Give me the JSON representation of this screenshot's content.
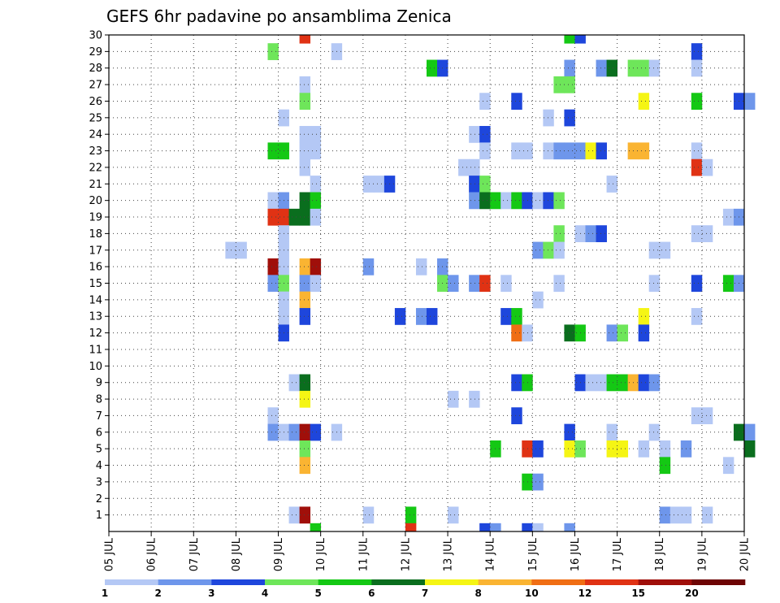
{
  "chart_data": {
    "type": "heatmap",
    "title": "GEFS 6hr padavine po ansamblima Zenica",
    "xlabel": "",
    "ylabel": "",
    "x_tick_labels": [
      "05 JUL",
      "06 JUL",
      "07 JUL",
      "08 JUL",
      "09 JUL",
      "10 JUL",
      "11 JUL",
      "12 JUL",
      "13 JUL",
      "14 JUL",
      "15 JUL",
      "16 JUL",
      "17 JUL",
      "18 JUL",
      "19 JUL",
      "20 JUL"
    ],
    "y_tick_labels": [
      "1",
      "2",
      "3",
      "4",
      "5",
      "6",
      "7",
      "8",
      "9",
      "10",
      "11",
      "12",
      "13",
      "14",
      "15",
      "16",
      "17",
      "18",
      "19",
      "20",
      "21",
      "22",
      "23",
      "24",
      "25",
      "26",
      "27",
      "28",
      "29",
      "30"
    ],
    "x_range_days": [
      0,
      15
    ],
    "y_range": [
      0,
      30
    ],
    "grid": true,
    "legend_position": "bottom",
    "legend_levels": [
      {
        "color": "#b4c8f5",
        "label": "1"
      },
      {
        "color": "#6e96eb",
        "label": "2"
      },
      {
        "color": "#1e46dc",
        "label": "3"
      },
      {
        "color": "#6ee65a",
        "label": "4"
      },
      {
        "color": "#14c814",
        "label": "5"
      },
      {
        "color": "#0a6e1e",
        "label": "6"
      },
      {
        "color": "#f5f514",
        "label": "7"
      },
      {
        "color": "#fab432",
        "label": "8"
      },
      {
        "color": "#f06e14",
        "label": "10"
      },
      {
        "color": "#e03214",
        "label": "12"
      },
      {
        "color": "#a00f0a",
        "label": "15"
      },
      {
        "color": "#6e0505",
        "label": "20"
      }
    ],
    "level_boundaries": [
      "1",
      "2",
      "3",
      "4",
      "5",
      "6",
      "7",
      "8",
      "10",
      "12",
      "15",
      "20"
    ],
    "cells": [
      [
        4.5,
        30,
        9
      ],
      [
        10.75,
        30,
        4
      ],
      [
        11,
        30,
        2
      ],
      [
        3.75,
        29,
        3
      ],
      [
        5.25,
        29,
        0
      ],
      [
        13.75,
        29,
        2
      ],
      [
        7.5,
        28,
        4
      ],
      [
        7.75,
        28,
        2
      ],
      [
        10.75,
        28,
        1
      ],
      [
        11.5,
        28,
        1
      ],
      [
        11.75,
        28,
        5
      ],
      [
        12.25,
        28,
        3
      ],
      [
        12.5,
        28,
        3
      ],
      [
        12.75,
        28,
        0
      ],
      [
        13.75,
        28,
        0
      ],
      [
        4.5,
        27,
        0
      ],
      [
        10.5,
        27,
        3
      ],
      [
        10.75,
        27,
        3
      ],
      [
        4.5,
        26,
        3
      ],
      [
        8.75,
        26,
        0
      ],
      [
        9.5,
        26,
        2
      ],
      [
        12.5,
        26,
        6
      ],
      [
        13.75,
        26,
        4
      ],
      [
        14.75,
        26,
        2
      ],
      [
        15,
        26,
        1
      ],
      [
        4,
        25,
        0
      ],
      [
        10.25,
        25,
        0
      ],
      [
        10.75,
        25,
        2
      ],
      [
        4.5,
        24,
        0
      ],
      [
        4.75,
        24,
        0
      ],
      [
        8.5,
        24,
        0
      ],
      [
        8.75,
        24,
        2
      ],
      [
        3.75,
        23,
        4
      ],
      [
        4,
        23,
        4
      ],
      [
        4.5,
        23,
        0
      ],
      [
        4.75,
        23,
        0
      ],
      [
        8.75,
        23,
        0
      ],
      [
        9.5,
        23,
        0
      ],
      [
        9.75,
        23,
        0
      ],
      [
        10.25,
        23,
        0
      ],
      [
        10.5,
        23,
        1
      ],
      [
        10.75,
        23,
        1
      ],
      [
        11,
        23,
        1
      ],
      [
        11.25,
        23,
        6
      ],
      [
        11.5,
        23,
        2
      ],
      [
        12.25,
        23,
        7
      ],
      [
        12.5,
        23,
        7
      ],
      [
        13.75,
        23,
        0
      ],
      [
        4.5,
        22,
        0
      ],
      [
        8.25,
        22,
        0
      ],
      [
        8.5,
        22,
        0
      ],
      [
        13.75,
        22,
        9
      ],
      [
        14,
        22,
        0
      ],
      [
        4.75,
        21,
        0
      ],
      [
        6,
        21,
        0
      ],
      [
        6.25,
        21,
        0
      ],
      [
        6.5,
        21,
        2
      ],
      [
        8.5,
        21,
        2
      ],
      [
        8.75,
        21,
        3
      ],
      [
        11.75,
        21,
        0
      ],
      [
        3.75,
        20,
        0
      ],
      [
        4,
        20,
        1
      ],
      [
        4.5,
        20,
        5
      ],
      [
        4.75,
        20,
        4
      ],
      [
        8.5,
        20,
        1
      ],
      [
        8.75,
        20,
        5
      ],
      [
        9,
        20,
        4
      ],
      [
        9.25,
        20,
        0
      ],
      [
        9.5,
        20,
        4
      ],
      [
        9.75,
        20,
        2
      ],
      [
        10,
        20,
        0
      ],
      [
        10.25,
        20,
        2
      ],
      [
        10.5,
        20,
        3
      ],
      [
        3.75,
        19,
        9
      ],
      [
        4,
        19,
        9
      ],
      [
        4.25,
        19,
        5
      ],
      [
        4.5,
        19,
        5
      ],
      [
        4.75,
        19,
        0
      ],
      [
        14.5,
        19,
        0
      ],
      [
        14.75,
        19,
        1
      ],
      [
        4,
        18,
        0
      ],
      [
        10.5,
        18,
        3
      ],
      [
        11,
        18,
        0
      ],
      [
        11.25,
        18,
        1
      ],
      [
        11.5,
        18,
        2
      ],
      [
        13.75,
        18,
        0
      ],
      [
        14,
        18,
        0
      ],
      [
        2.75,
        17,
        0
      ],
      [
        3,
        17,
        0
      ],
      [
        4,
        17,
        0
      ],
      [
        10,
        17,
        1
      ],
      [
        10.25,
        17,
        3
      ],
      [
        10.5,
        17,
        0
      ],
      [
        12.75,
        17,
        0
      ],
      [
        13,
        17,
        0
      ],
      [
        3.75,
        16,
        10
      ],
      [
        4,
        16,
        0
      ],
      [
        4.5,
        16,
        7
      ],
      [
        4.75,
        16,
        10
      ],
      [
        6,
        16,
        1
      ],
      [
        7.25,
        16,
        0
      ],
      [
        7.75,
        16,
        1
      ],
      [
        3.75,
        15,
        1
      ],
      [
        4,
        15,
        3
      ],
      [
        4.5,
        15,
        1
      ],
      [
        4.75,
        15,
        0
      ],
      [
        7.75,
        15,
        3
      ],
      [
        8,
        15,
        1
      ],
      [
        8.5,
        15,
        1
      ],
      [
        8.75,
        15,
        9
      ],
      [
        9.25,
        15,
        0
      ],
      [
        10.5,
        15,
        0
      ],
      [
        12.75,
        15,
        0
      ],
      [
        13.75,
        15,
        2
      ],
      [
        14.5,
        15,
        4
      ],
      [
        14.75,
        15,
        1
      ],
      [
        4,
        14,
        0
      ],
      [
        4.5,
        14,
        7
      ],
      [
        10,
        14,
        0
      ],
      [
        4,
        13,
        0
      ],
      [
        4.5,
        13,
        2
      ],
      [
        6.75,
        13,
        2
      ],
      [
        7.25,
        13,
        1
      ],
      [
        7.5,
        13,
        2
      ],
      [
        9.25,
        13,
        2
      ],
      [
        9.5,
        13,
        4
      ],
      [
        12.5,
        13,
        6
      ],
      [
        13.75,
        13,
        0
      ],
      [
        4,
        12,
        2
      ],
      [
        9.5,
        12,
        8
      ],
      [
        9.75,
        12,
        0
      ],
      [
        10.75,
        12,
        5
      ],
      [
        11,
        12,
        4
      ],
      [
        11.75,
        12,
        1
      ],
      [
        12,
        12,
        3
      ],
      [
        12.5,
        12,
        2
      ],
      [
        4.25,
        9,
        0
      ],
      [
        4.5,
        9,
        5
      ],
      [
        9.5,
        9,
        2
      ],
      [
        9.75,
        9,
        4
      ],
      [
        11,
        9,
        2
      ],
      [
        11.25,
        9,
        0
      ],
      [
        11.5,
        9,
        0
      ],
      [
        11.75,
        9,
        4
      ],
      [
        12,
        9,
        4
      ],
      [
        12.25,
        9,
        7
      ],
      [
        12.5,
        9,
        2
      ],
      [
        12.75,
        9,
        1
      ],
      [
        4.5,
        8,
        6
      ],
      [
        8,
        8,
        0
      ],
      [
        8.5,
        8,
        0
      ],
      [
        3.75,
        7,
        0
      ],
      [
        9.5,
        7,
        2
      ],
      [
        13.75,
        7,
        0
      ],
      [
        14,
        7,
        0
      ],
      [
        3.75,
        6,
        1
      ],
      [
        4,
        6,
        0
      ],
      [
        4.25,
        6,
        1
      ],
      [
        4.5,
        6,
        10
      ],
      [
        4.75,
        6,
        2
      ],
      [
        5.25,
        6,
        0
      ],
      [
        10.75,
        6,
        2
      ],
      [
        11.75,
        6,
        0
      ],
      [
        12.75,
        6,
        0
      ],
      [
        14.75,
        6,
        5
      ],
      [
        15,
        6,
        1
      ],
      [
        4.5,
        5,
        3
      ],
      [
        9,
        5,
        4
      ],
      [
        9.75,
        5,
        9
      ],
      [
        10,
        5,
        2
      ],
      [
        10.75,
        5,
        6
      ],
      [
        11,
        5,
        3
      ],
      [
        11.75,
        5,
        6
      ],
      [
        12,
        5,
        6
      ],
      [
        12.5,
        5,
        0
      ],
      [
        13,
        5,
        0
      ],
      [
        13.5,
        5,
        1
      ],
      [
        15,
        5,
        5
      ],
      [
        4.5,
        4,
        7
      ],
      [
        13,
        4,
        4
      ],
      [
        14.5,
        4,
        0
      ],
      [
        9.75,
        3,
        4
      ],
      [
        10,
        3,
        1
      ],
      [
        4.25,
        1,
        0
      ],
      [
        4.5,
        1,
        10
      ],
      [
        6,
        1,
        0
      ],
      [
        7,
        1,
        4
      ],
      [
        8,
        1,
        0
      ],
      [
        13,
        1,
        1
      ],
      [
        13.25,
        1,
        0
      ],
      [
        13.5,
        1,
        0
      ],
      [
        14,
        1,
        0
      ],
      [
        4.75,
        0,
        4
      ],
      [
        7,
        0,
        9
      ],
      [
        8.75,
        0,
        2
      ],
      [
        9,
        0,
        1
      ],
      [
        9.75,
        0,
        2
      ],
      [
        10,
        0,
        0
      ],
      [
        10.75,
        0,
        1
      ]
    ]
  }
}
